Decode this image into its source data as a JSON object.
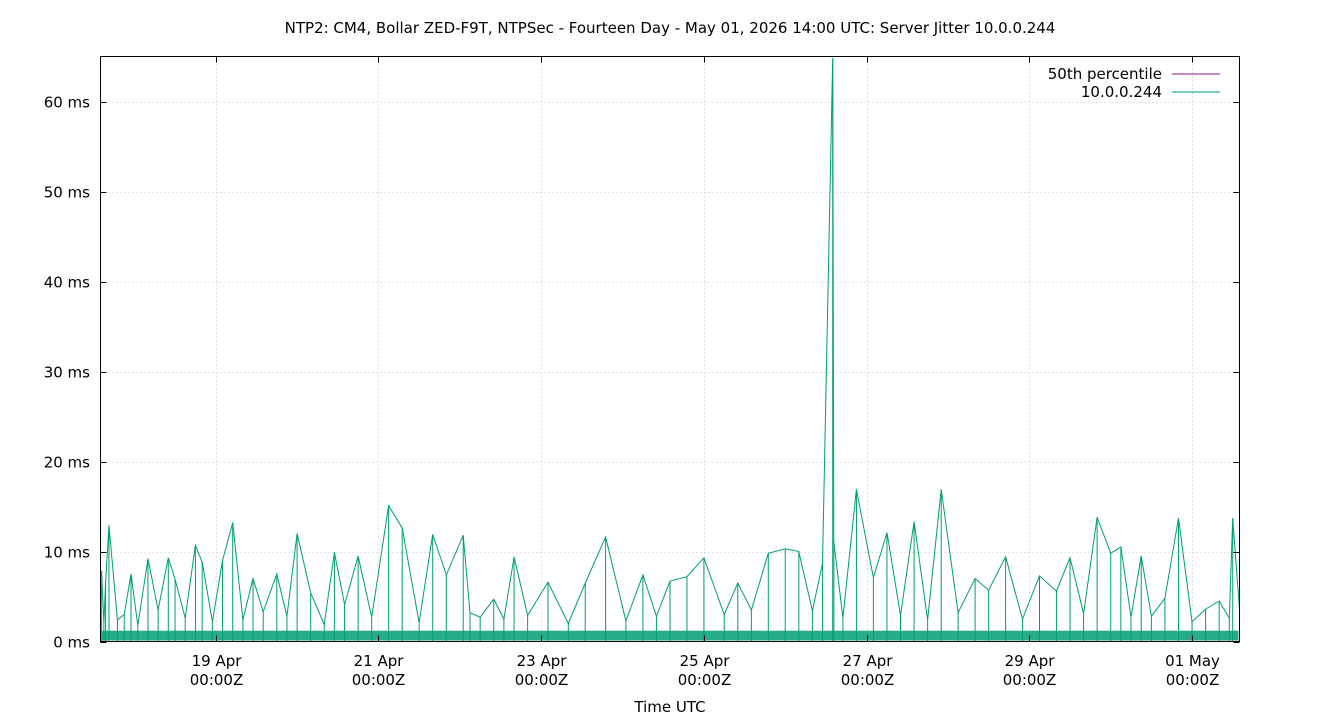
{
  "chart_data": {
    "type": "line",
    "title": "NTP2: CM4, Bollar ZED-F9T, NTPSec - Fourteen Day - May 01, 2026 14:00 UTC: Server Jitter 10.0.0.244",
    "xlabel": "Time UTC",
    "ylabel": "",
    "y_unit": "ms",
    "ylim": [
      0,
      65
    ],
    "yticks": [
      {
        "value": 0,
        "label": "0 ms"
      },
      {
        "value": 10,
        "label": "10 ms"
      },
      {
        "value": 20,
        "label": "20 ms"
      },
      {
        "value": 30,
        "label": "30 ms"
      },
      {
        "value": 40,
        "label": "40 ms"
      },
      {
        "value": 50,
        "label": "50 ms"
      },
      {
        "value": 60,
        "label": "60 ms"
      }
    ],
    "xlim": [
      "2026-04-17T14:00Z",
      "2026-05-01T14:00Z"
    ],
    "xticks": [
      {
        "value": "2026-04-19T00:00Z",
        "line1": "19 Apr",
        "line2": "00:00Z"
      },
      {
        "value": "2026-04-21T00:00Z",
        "line1": "21 Apr",
        "line2": "00:00Z"
      },
      {
        "value": "2026-04-23T00:00Z",
        "line1": "23 Apr",
        "line2": "00:00Z"
      },
      {
        "value": "2026-04-25T00:00Z",
        "line1": "25 Apr",
        "line2": "00:00Z"
      },
      {
        "value": "2026-04-27T00:00Z",
        "line1": "27 Apr",
        "line2": "00:00Z"
      },
      {
        "value": "2026-04-29T00:00Z",
        "line1": "29 Apr",
        "line2": "00:00Z"
      },
      {
        "value": "2026-05-01T00:00Z",
        "line1": "01 May",
        "line2": "00:00Z"
      }
    ],
    "grid": true,
    "legend_position": "top-right",
    "series": [
      {
        "name": "50th percentile",
        "color": "#8b1a8b",
        "x": [],
        "y": []
      },
      {
        "name": "10.0.0.244",
        "color": "#009e73",
        "x": [
          "2026-04-17T14:00Z",
          "2026-04-17T14:20Z",
          "2026-04-17T15:00Z",
          "2026-04-17T15:30Z",
          "2026-04-17T16:30Z",
          "2026-04-17T19:00Z",
          "2026-04-17T21:00Z",
          "2026-04-17T23:00Z",
          "2026-04-18T01:00Z",
          "2026-04-18T04:00Z",
          "2026-04-18T07:00Z",
          "2026-04-18T10:00Z",
          "2026-04-18T12:00Z",
          "2026-04-18T15:00Z",
          "2026-04-18T18:00Z",
          "2026-04-18T20:00Z",
          "2026-04-18T23:00Z",
          "2026-04-19T02:00Z",
          "2026-04-19T05:00Z",
          "2026-04-19T08:00Z",
          "2026-04-19T11:00Z",
          "2026-04-19T14:00Z",
          "2026-04-19T18:00Z",
          "2026-04-19T21:00Z",
          "2026-04-20T00:00Z",
          "2026-04-20T04:00Z",
          "2026-04-20T08:00Z",
          "2026-04-20T11:00Z",
          "2026-04-20T14:00Z",
          "2026-04-20T18:00Z",
          "2026-04-20T22:00Z",
          "2026-04-21T03:00Z",
          "2026-04-21T07:00Z",
          "2026-04-21T12:00Z",
          "2026-04-21T16:00Z",
          "2026-04-21T20:00Z",
          "2026-04-22T01:00Z",
          "2026-04-22T03:00Z",
          "2026-04-22T06:00Z",
          "2026-04-22T10:00Z",
          "2026-04-22T13:00Z",
          "2026-04-22T16:00Z",
          "2026-04-22T20:00Z",
          "2026-04-23T02:00Z",
          "2026-04-23T08:00Z",
          "2026-04-23T13:00Z",
          "2026-04-23T19:00Z",
          "2026-04-24T01:00Z",
          "2026-04-24T06:00Z",
          "2026-04-24T10:00Z",
          "2026-04-24T14:00Z",
          "2026-04-24T19:00Z",
          "2026-04-25T00:00Z",
          "2026-04-25T06:00Z",
          "2026-04-25T10:00Z",
          "2026-04-25T14:00Z",
          "2026-04-25T19:00Z",
          "2026-04-26T00:00Z",
          "2026-04-26T04:00Z",
          "2026-04-26T08:00Z",
          "2026-04-26T11:00Z",
          "2026-04-26T14:00Z",
          "2026-04-26T14:20Z",
          "2026-04-26T17:00Z",
          "2026-04-26T21:00Z",
          "2026-04-27T02:00Z",
          "2026-04-27T06:00Z",
          "2026-04-27T10:00Z",
          "2026-04-27T14:00Z",
          "2026-04-27T18:00Z",
          "2026-04-27T22:00Z",
          "2026-04-28T03:00Z",
          "2026-04-28T08:00Z",
          "2026-04-28T12:00Z",
          "2026-04-28T17:00Z",
          "2026-04-28T22:00Z",
          "2026-04-29T03:00Z",
          "2026-04-29T08:00Z",
          "2026-04-29T12:00Z",
          "2026-04-29T16:00Z",
          "2026-04-29T20:00Z",
          "2026-04-30T00:00Z",
          "2026-04-30T03:00Z",
          "2026-04-30T06:00Z",
          "2026-04-30T09:00Z",
          "2026-04-30T12:00Z",
          "2026-04-30T16:00Z",
          "2026-04-30T20:00Z",
          "2026-05-01T00:00Z",
          "2026-05-01T04:00Z",
          "2026-05-01T08:00Z",
          "2026-05-01T11:00Z",
          "2026-05-01T12:00Z",
          "2026-05-01T14:00Z"
        ],
        "y": [
          7.8,
          7.8,
          2.1,
          6.6,
          12.9,
          2.4,
          3.0,
          7.5,
          1.8,
          9.2,
          3.5,
          9.3,
          6.9,
          2.6,
          10.7,
          8.8,
          2.2,
          9.0,
          13.2,
          2.4,
          7.0,
          3.3,
          7.5,
          2.8,
          12.0,
          5.4,
          1.9,
          9.9,
          4.1,
          9.5,
          2.7,
          15.1,
          12.6,
          2.1,
          11.9,
          7.4,
          11.8,
          3.2,
          2.7,
          4.7,
          2.5,
          9.4,
          2.9,
          6.6,
          2.0,
          6.5,
          11.6,
          2.3,
          7.4,
          2.8,
          6.7,
          7.2,
          9.3,
          3.0,
          6.5,
          3.5,
          9.8,
          10.3,
          10.0,
          3.4,
          8.7,
          64.8,
          11.1,
          2.6,
          16.9,
          7.1,
          12.1,
          2.9,
          13.3,
          2.4,
          16.9,
          3.2,
          7.0,
          5.7,
          9.4,
          2.5,
          7.3,
          5.6,
          9.3,
          3.1,
          13.8,
          9.8,
          10.5,
          2.7,
          9.5,
          2.8,
          4.8,
          13.7,
          2.2,
          3.6,
          4.5,
          2.6,
          13.7,
          3.6
        ]
      }
    ]
  }
}
